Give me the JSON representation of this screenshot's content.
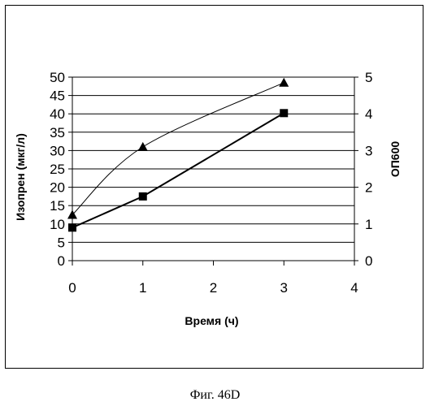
{
  "caption": "Фиг. 46D",
  "chart_data": {
    "type": "line",
    "xlabel": "Время (ч)",
    "ylabel": "Изопрен (мкг/л)",
    "y2label": "ОП600",
    "xlim": [
      0,
      4
    ],
    "ylim": [
      0,
      50
    ],
    "y2lim": [
      0,
      5
    ],
    "x_ticks": [
      "0",
      "1",
      "2",
      "3",
      "4"
    ],
    "y_ticks": [
      "0",
      "5",
      "10",
      "15",
      "20",
      "25",
      "30",
      "35",
      "40",
      "45",
      "50"
    ],
    "y2_ticks": [
      "0",
      "1",
      "2",
      "3",
      "4",
      "5"
    ],
    "grid": "horizontal",
    "legend": "none",
    "series": [
      {
        "marker": "square",
        "axis": "left",
        "line": "straight",
        "x": [
          0,
          1,
          3
        ],
        "values": [
          9,
          17.5,
          40.2
        ]
      },
      {
        "marker": "triangle",
        "axis": "left",
        "line": "smooth",
        "x": [
          0,
          1,
          3
        ],
        "values": [
          12.5,
          31,
          48.5
        ]
      }
    ]
  }
}
